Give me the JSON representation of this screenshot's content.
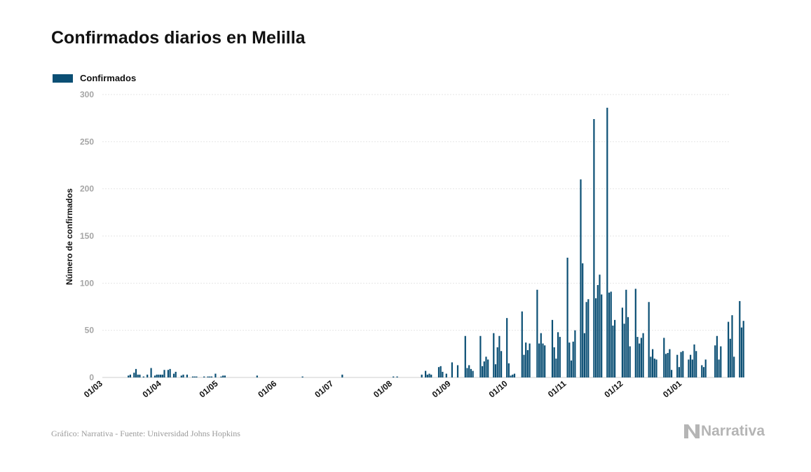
{
  "title": "Confirmados diarios en Melilla",
  "footer": "Gráfico: Narrativa - Fuente: Universidad Johns Hopkins",
  "brand": "Narrativa",
  "colors": {
    "bar": "#0b4f74",
    "grid": "#e6e6e6",
    "tick_text": "#a5a5a5",
    "text": "#111111"
  },
  "chart_data": {
    "type": "bar",
    "title": "Confirmados diarios en Melilla",
    "ylabel": "Número de confirmados",
    "xlabel": "",
    "ylim": [
      0,
      300
    ],
    "yticks": [
      0,
      50,
      100,
      150,
      200,
      250,
      300
    ],
    "xticks": [
      "01/03",
      "01/04",
      "01/05",
      "01/06",
      "01/07",
      "01/08",
      "01/09",
      "01/10",
      "01/11",
      "01/12",
      "01/01"
    ],
    "grid": true,
    "legend_position": "top-left",
    "series": [
      {
        "name": "Confirmados",
        "color": "#0b4f74",
        "values": [
          0,
          0,
          0,
          0,
          0,
          0,
          0,
          0,
          0,
          0,
          0,
          0,
          0,
          2,
          3,
          0,
          5,
          9,
          3,
          3,
          0,
          1,
          0,
          3,
          0,
          10,
          0,
          2,
          3,
          3,
          3,
          3,
          8,
          0,
          8,
          9,
          0,
          4,
          6,
          0,
          0,
          2,
          3,
          0,
          3,
          0,
          0,
          1,
          1,
          1,
          0,
          0,
          0,
          1,
          0,
          1,
          1,
          1,
          0,
          4,
          0,
          0,
          1,
          2,
          2,
          0,
          0,
          0,
          0,
          0,
          0,
          0,
          0,
          0,
          0,
          0,
          0,
          0,
          0,
          0,
          0,
          2,
          0,
          0,
          0,
          0,
          0,
          0,
          0,
          0,
          0,
          0,
          0,
          0,
          0,
          0,
          0,
          0,
          0,
          0,
          0,
          0,
          0,
          0,
          0,
          1,
          0,
          0,
          0,
          0,
          0,
          0,
          0,
          0,
          0,
          0,
          0,
          0,
          0,
          0,
          0,
          0,
          0,
          0,
          0,
          0,
          3,
          0,
          0,
          0,
          0,
          0,
          0,
          0,
          0,
          0,
          0,
          0,
          0,
          0,
          0,
          0,
          0,
          0,
          0,
          0,
          0,
          0,
          0,
          0,
          0,
          0,
          0,
          1,
          0,
          1,
          0,
          0,
          0,
          0,
          0,
          0,
          0,
          0,
          0,
          0,
          0,
          0,
          3,
          0,
          7,
          3,
          4,
          3,
          0,
          0,
          0,
          11,
          12,
          6,
          0,
          4,
          0,
          0,
          16,
          0,
          0,
          13,
          0,
          0,
          0,
          44,
          10,
          13,
          9,
          7,
          0,
          0,
          0,
          44,
          12,
          17,
          22,
          19,
          0,
          0,
          47,
          14,
          32,
          44,
          28,
          0,
          0,
          63,
          15,
          2,
          3,
          4,
          0,
          0,
          0,
          70,
          24,
          37,
          29,
          36,
          0,
          0,
          0,
          93,
          36,
          47,
          36,
          34,
          0,
          0,
          0,
          61,
          32,
          20,
          48,
          43,
          0,
          0,
          0,
          127,
          37,
          18,
          38,
          50,
          0,
          0,
          210,
          121,
          47,
          80,
          83,
          0,
          0,
          274,
          84,
          98,
          109,
          88,
          0,
          0,
          286,
          90,
          91,
          55,
          61,
          0,
          0,
          0,
          74,
          57,
          93,
          64,
          33,
          0,
          0,
          94,
          43,
          36,
          42,
          47,
          0,
          0,
          80,
          22,
          30,
          20,
          19,
          0,
          0,
          0,
          42,
          25,
          26,
          30,
          8,
          0,
          0,
          24,
          11,
          27,
          28,
          0,
          0,
          19,
          24,
          19,
          35,
          28,
          0,
          0,
          13,
          11,
          19,
          0,
          0,
          0,
          0,
          34,
          44,
          19,
          33,
          0,
          0,
          0,
          59,
          41,
          66,
          22,
          0,
          0,
          81,
          53,
          60
        ]
      }
    ]
  }
}
